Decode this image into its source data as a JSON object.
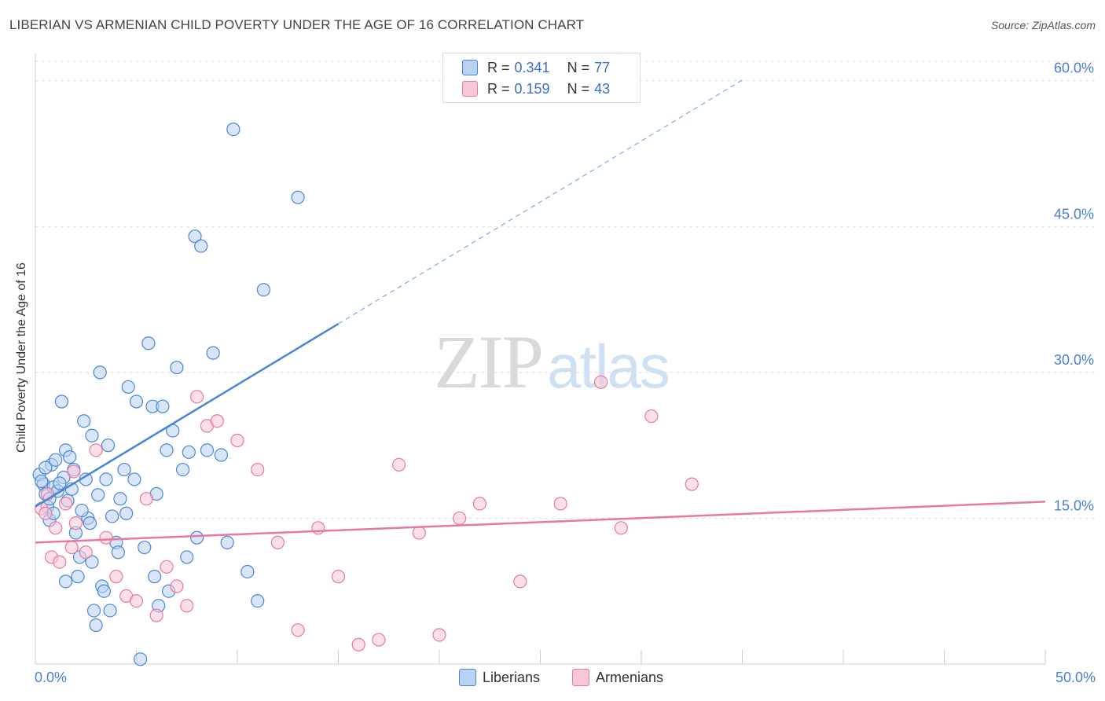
{
  "title": "LIBERIAN VS ARMENIAN CHILD POVERTY UNDER THE AGE OF 16 CORRELATION CHART",
  "source": "Source: ZipAtlas.com",
  "watermark": {
    "zip": "ZIP",
    "atlas": "atlas"
  },
  "legend": {
    "liberians": {
      "r_key": "R =",
      "r_val": "0.341",
      "n_key": "N =",
      "n_val": "77"
    },
    "armenians": {
      "r_key": "R =",
      "r_val": "0.159",
      "n_key": "N =",
      "n_val": "43"
    }
  },
  "colors": {
    "liberians": "#4a86d6",
    "armenians": "#e8799e",
    "liberians_fill": "#b9d2f2",
    "armenians_fill": "#f7c7d7",
    "tick_label": "#4a7fd4"
  },
  "chart_data": {
    "type": "scatter",
    "title": "LIBERIAN VS ARMENIAN CHILD POVERTY UNDER THE AGE OF 16 CORRELATION CHART",
    "xlabel": "",
    "ylabel": "Child Poverty Under the Age of 16",
    "xlim": [
      0,
      50
    ],
    "ylim": [
      0,
      62
    ],
    "x_tick_labels": [
      "0.0%",
      "50.0%"
    ],
    "y_ticks": [
      15,
      30,
      45,
      60
    ],
    "y_tick_labels": [
      "15.0%",
      "30.0%",
      "45.0%",
      "60.0%"
    ],
    "series": [
      {
        "name": "Liberians",
        "points": [
          [
            0.2,
            19.5
          ],
          [
            0.4,
            18.5
          ],
          [
            0.5,
            17.5
          ],
          [
            0.6,
            16.2
          ],
          [
            0.7,
            14.8
          ],
          [
            0.8,
            20.5
          ],
          [
            0.9,
            18.2
          ],
          [
            1.0,
            21.0
          ],
          [
            1.1,
            17.8
          ],
          [
            1.3,
            27.0
          ],
          [
            1.4,
            19.2
          ],
          [
            1.5,
            22.0
          ],
          [
            1.6,
            16.8
          ],
          [
            1.8,
            18.0
          ],
          [
            1.9,
            20.0
          ],
          [
            2.0,
            13.5
          ],
          [
            2.1,
            9.0
          ],
          [
            2.2,
            11.0
          ],
          [
            2.4,
            25.0
          ],
          [
            2.5,
            19.0
          ],
          [
            2.6,
            15.0
          ],
          [
            2.7,
            14.5
          ],
          [
            2.8,
            10.5
          ],
          [
            2.9,
            5.5
          ],
          [
            3.0,
            4.0
          ],
          [
            3.2,
            30.0
          ],
          [
            3.3,
            8.0
          ],
          [
            3.5,
            19.0
          ],
          [
            3.6,
            22.5
          ],
          [
            3.8,
            15.2
          ],
          [
            4.0,
            12.5
          ],
          [
            4.2,
            17.0
          ],
          [
            4.4,
            20.0
          ],
          [
            4.6,
            28.5
          ],
          [
            4.9,
            19.0
          ],
          [
            5.2,
            0.5
          ],
          [
            5.4,
            12.0
          ],
          [
            5.6,
            33.0
          ],
          [
            5.8,
            26.5
          ],
          [
            6.0,
            17.5
          ],
          [
            6.3,
            26.5
          ],
          [
            6.5,
            22.0
          ],
          [
            6.8,
            24.0
          ],
          [
            7.0,
            30.5
          ],
          [
            7.3,
            20.0
          ],
          [
            7.5,
            11.0
          ],
          [
            7.9,
            44.0
          ],
          [
            8.2,
            43.0
          ],
          [
            8.5,
            22.0
          ],
          [
            8.8,
            32.0
          ],
          [
            9.2,
            21.5
          ],
          [
            9.5,
            12.5
          ],
          [
            9.8,
            55.0
          ],
          [
            10.5,
            9.5
          ],
          [
            11.0,
            6.5
          ],
          [
            11.3,
            38.5
          ],
          [
            13.0,
            48.0
          ],
          [
            0.3,
            18.8
          ],
          [
            0.5,
            20.2
          ],
          [
            0.7,
            17.0
          ],
          [
            1.2,
            18.6
          ],
          [
            1.7,
            21.3
          ],
          [
            2.3,
            15.8
          ],
          [
            3.1,
            17.4
          ],
          [
            3.4,
            7.5
          ],
          [
            4.1,
            11.5
          ],
          [
            4.5,
            15.5
          ],
          [
            5.0,
            27.0
          ],
          [
            6.1,
            6.0
          ],
          [
            6.6,
            7.5
          ],
          [
            7.6,
            21.8
          ],
          [
            8.0,
            13.0
          ],
          [
            0.9,
            15.5
          ],
          [
            1.5,
            8.5
          ],
          [
            2.8,
            23.5
          ],
          [
            3.7,
            5.5
          ],
          [
            5.9,
            9.0
          ]
        ]
      },
      {
        "name": "Armenians",
        "points": [
          [
            0.3,
            16.0
          ],
          [
            0.5,
            15.5
          ],
          [
            0.6,
            17.5
          ],
          [
            0.8,
            11.0
          ],
          [
            1.0,
            14.0
          ],
          [
            1.2,
            10.5
          ],
          [
            1.5,
            16.5
          ],
          [
            1.8,
            12.0
          ],
          [
            2.0,
            14.5
          ],
          [
            2.5,
            11.5
          ],
          [
            3.0,
            22.0
          ],
          [
            3.5,
            13.0
          ],
          [
            4.0,
            9.0
          ],
          [
            4.5,
            7.0
          ],
          [
            5.0,
            6.5
          ],
          [
            5.5,
            17.0
          ],
          [
            6.0,
            5.0
          ],
          [
            6.5,
            10.0
          ],
          [
            7.0,
            8.0
          ],
          [
            7.5,
            6.0
          ],
          [
            8.0,
            27.5
          ],
          [
            8.5,
            24.5
          ],
          [
            9.0,
            25.0
          ],
          [
            10.0,
            23.0
          ],
          [
            11.0,
            20.0
          ],
          [
            12.0,
            12.5
          ],
          [
            13.0,
            3.5
          ],
          [
            14.0,
            14.0
          ],
          [
            15.0,
            9.0
          ],
          [
            16.0,
            2.0
          ],
          [
            17.0,
            2.5
          ],
          [
            18.0,
            20.5
          ],
          [
            19.0,
            13.5
          ],
          [
            20.0,
            3.0
          ],
          [
            21.0,
            15.0
          ],
          [
            22.0,
            16.5
          ],
          [
            24.0,
            8.5
          ],
          [
            26.0,
            16.5
          ],
          [
            28.0,
            29.0
          ],
          [
            29.0,
            14.0
          ],
          [
            30.5,
            25.5
          ],
          [
            32.5,
            18.5
          ],
          [
            1.9,
            19.8
          ]
        ]
      }
    ],
    "trend_lines": [
      {
        "name": "Liberians",
        "x": [
          0,
          15
        ],
        "y": [
          16.2,
          35.0
        ],
        "dashed_extension_to": [
          35,
          60
        ]
      },
      {
        "name": "Armenians",
        "x": [
          0,
          50
        ],
        "y": [
          12.5,
          16.7
        ]
      }
    ]
  },
  "bottom_legend": {
    "liberians_label": "Liberians",
    "armenians_label": "Armenians"
  }
}
